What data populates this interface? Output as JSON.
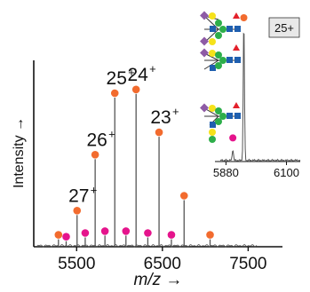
{
  "colors": {
    "spectrum": "#555555",
    "axis": "#111111",
    "orange": "#F26B2E",
    "magenta": "#E5148C",
    "glycan_blue": "#1F5FAF",
    "glycan_green": "#2DAE4A",
    "glycan_yellow": "#F6E21A",
    "glycan_purple": "#8E5BA6",
    "glycan_red": "#E3202B"
  },
  "chart_data": [
    {
      "type": "line",
      "title": "",
      "xlabel": "m/z →",
      "ylabel": "Intensity →",
      "xlim": [
        5000,
        7900
      ],
      "ylim": [
        0,
        100
      ],
      "xticks": [
        5500,
        6500,
        7500
      ],
      "grid": false,
      "legend": "none",
      "peaks": [
        {
          "label": "27+",
          "x": 5505,
          "y": 17,
          "marker": "orange"
        },
        {
          "label": "26+",
          "x": 5716,
          "y": 47,
          "marker": "orange"
        },
        {
          "label": "25+",
          "x": 5945,
          "y": 80,
          "marker": "orange"
        },
        {
          "label": "24+",
          "x": 6193,
          "y": 82,
          "marker": "orange"
        },
        {
          "label": "23+",
          "x": 6461,
          "y": 59,
          "marker": "orange"
        },
        {
          "label": "",
          "x": 6753,
          "y": 25,
          "marker": "orange"
        },
        {
          "label": "",
          "x": 7056,
          "y": 4,
          "marker": "orange"
        },
        {
          "label": "",
          "x": 5288,
          "y": 4,
          "marker": "orange"
        }
      ],
      "adduct_peaks": [
        {
          "x": 5378,
          "y": 3,
          "marker": "magenta"
        },
        {
          "x": 5600,
          "y": 5,
          "marker": "magenta"
        },
        {
          "x": 5830,
          "y": 6,
          "marker": "magenta"
        },
        {
          "x": 6075,
          "y": 6,
          "marker": "magenta"
        },
        {
          "x": 6330,
          "y": 5,
          "marker": "magenta"
        },
        {
          "x": 6605,
          "y": 4,
          "marker": "magenta"
        }
      ]
    },
    {
      "type": "line",
      "title": "",
      "charge_state_label": "25+",
      "xlim": [
        5840,
        6150
      ],
      "ylim": [
        0,
        100
      ],
      "xticks": [
        5880,
        6100
      ],
      "peaks": [
        {
          "x": 5945,
          "y": 100,
          "marker": "orange"
        },
        {
          "x": 5905,
          "y": 8,
          "marker": "magenta"
        }
      ]
    }
  ]
}
